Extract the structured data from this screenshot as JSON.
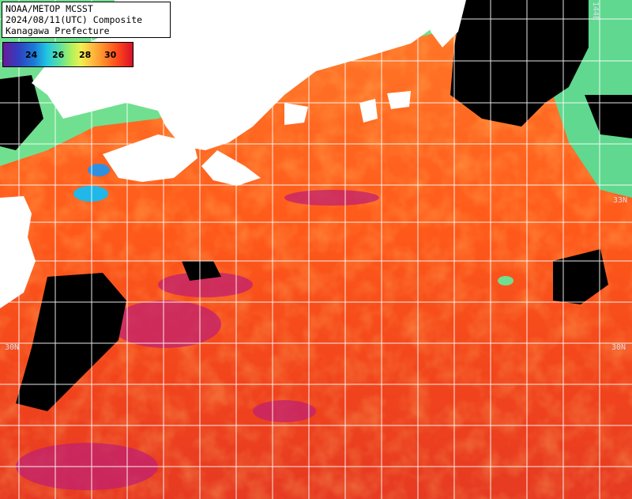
{
  "header": {
    "line1": "NOAA/METOP MCSST",
    "line2": "2024/08/11(UTC) Composite",
    "line3": "Kanagawa Prefecture"
  },
  "legend": {
    "ticks": [
      "24",
      "26",
      "28",
      "30"
    ],
    "colors": [
      "#6a1a9a",
      "#1a7ad8",
      "#22c8e0",
      "#a8f060",
      "#f0f050",
      "#ff8a2a",
      "#d8102a"
    ]
  },
  "grid_labels": {
    "lon_144e": "144E",
    "lat_33n": "33N",
    "lat_30n_left": "30N",
    "lat_30n_right": "30N"
  },
  "colors": {
    "land": "#ffffff",
    "no_data": "#000000",
    "gridline": "#ffffff"
  }
}
